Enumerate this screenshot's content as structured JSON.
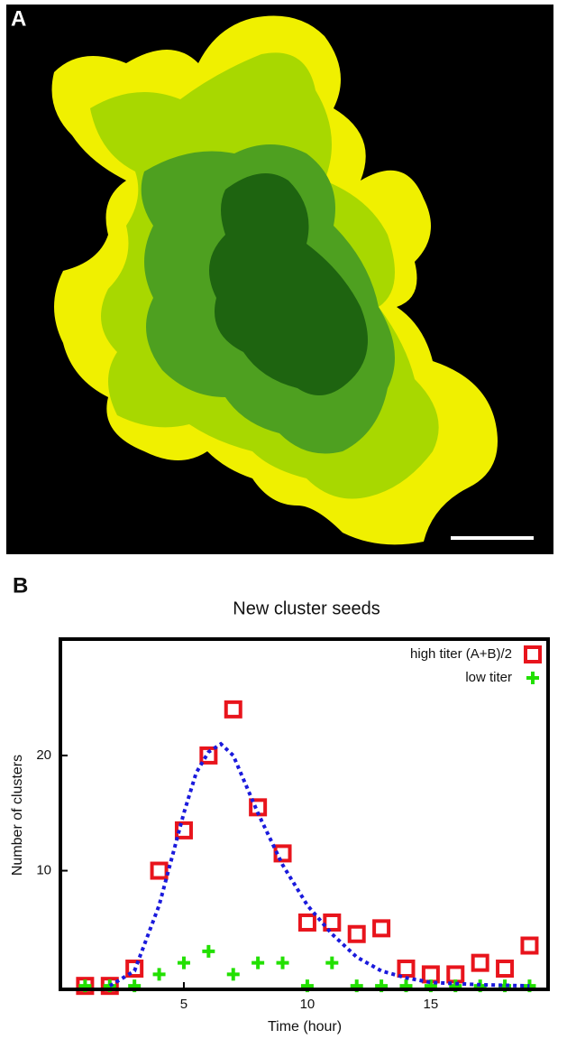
{
  "panel_labels": [
    "A",
    "B"
  ],
  "chart_data": {
    "type": "scatter",
    "title": "New cluster seeds",
    "x_label": "Time (hour)",
    "y_label": "Number of clusters",
    "x": [
      1,
      2,
      3,
      4,
      5,
      6,
      7,
      8,
      9,
      10,
      11,
      12,
      13,
      14,
      15,
      16,
      17,
      18,
      19
    ],
    "series": [
      {
        "name": "high titer (A+B)/2",
        "color": "#e8141c",
        "marker": "square",
        "values": [
          0,
          0,
          1.5,
          10,
          13.5,
          20,
          24,
          15.5,
          11.5,
          5.5,
          5.5,
          4.5,
          5,
          1.5,
          1,
          1,
          2,
          1.5,
          3.5
        ]
      },
      {
        "name": "low titer",
        "color": "#22e000",
        "marker": "plus",
        "values": [
          0,
          0,
          0,
          1,
          2,
          3,
          1,
          2,
          2,
          0,
          2,
          0,
          0,
          0,
          0,
          0,
          0,
          0,
          0
        ]
      },
      {
        "color": "#1a1adc",
        "marker": "dotted-line",
        "x": [
          2,
          3,
          4,
          5,
          5.5,
          6,
          6.5,
          7,
          8,
          9,
          10,
          11,
          12,
          13,
          14,
          15,
          16,
          17,
          18,
          19
        ],
        "values": [
          0,
          1.3,
          7,
          15,
          18.5,
          20.3,
          21,
          20,
          15,
          10.5,
          7,
          4.5,
          2.5,
          1.3,
          0.7,
          0.3,
          0.2,
          0.1,
          0.05,
          0
        ]
      }
    ],
    "xlim": [
      0,
      19.75
    ],
    "ylim": [
      -0.3,
      30.1
    ],
    "xticks": [
      5,
      10,
      15
    ],
    "yticks": [
      10,
      20
    ],
    "grid": false,
    "legend": "top-right"
  }
}
